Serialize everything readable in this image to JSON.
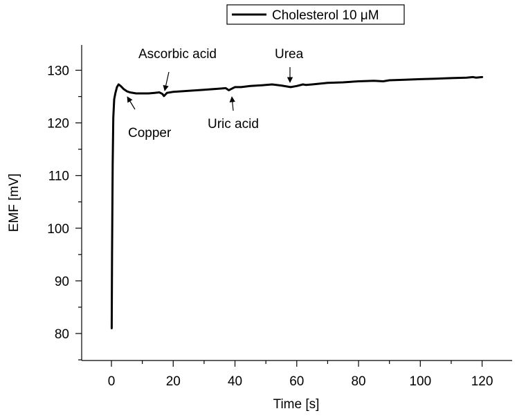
{
  "chart_data": {
    "type": "line",
    "title": "",
    "xlabel": "Time [s]",
    "ylabel": "EMF [mV]",
    "xlim": [
      -10,
      125
    ],
    "ylim": [
      75,
      135
    ],
    "x_ticks": [
      0,
      20,
      40,
      60,
      80,
      100,
      120
    ],
    "y_ticks": [
      80,
      90,
      100,
      110,
      120,
      130
    ],
    "x_tick_labels": [
      "0",
      "20",
      "40",
      "60",
      "80",
      "100",
      "120"
    ],
    "y_tick_labels": [
      "80",
      "90",
      "100",
      "110",
      "120",
      "130"
    ],
    "grid": false,
    "legend": {
      "placement": "top-center",
      "entries": [
        "Cholesterol 10 μM"
      ]
    },
    "series": [
      {
        "name": "Cholesterol 10 μM",
        "color": "#000000",
        "x": [
          0.1,
          0.2,
          0.4,
          0.6,
          0.9,
          1.3,
          1.8,
          2.3,
          3,
          4,
          5,
          6,
          8,
          10,
          12,
          14,
          15.5,
          16.5,
          17,
          17.5,
          18,
          19,
          20,
          25,
          30,
          35,
          37,
          38,
          39,
          40,
          42,
          45,
          50,
          52,
          55,
          57,
          58,
          60,
          62,
          63,
          65,
          70,
          75,
          80,
          85,
          88,
          90,
          95,
          100,
          105,
          110,
          115,
          117,
          118,
          120
        ],
        "y": [
          81,
          95,
          112,
          121,
          124.5,
          125.7,
          126.8,
          127.3,
          127.0,
          126.4,
          126.0,
          125.8,
          125.6,
          125.6,
          125.6,
          125.7,
          125.8,
          125.5,
          125.1,
          125.4,
          125.7,
          125.8,
          125.9,
          126.1,
          126.3,
          126.5,
          126.6,
          126.2,
          126.5,
          126.8,
          126.8,
          127.0,
          127.2,
          127.3,
          127.1,
          126.9,
          126.8,
          127.0,
          127.3,
          127.2,
          127.3,
          127.6,
          127.7,
          127.9,
          128.0,
          127.9,
          128.1,
          128.2,
          128.3,
          128.4,
          128.5,
          128.6,
          128.7,
          128.6,
          128.7
        ]
      }
    ],
    "annotations": [
      {
        "text": "Copper",
        "x": 2.8
      },
      {
        "text": "Ascorbic acid",
        "x": 18
      },
      {
        "text": "Uric acid",
        "x": 39
      },
      {
        "text": "Urea",
        "x": 58
      }
    ]
  }
}
